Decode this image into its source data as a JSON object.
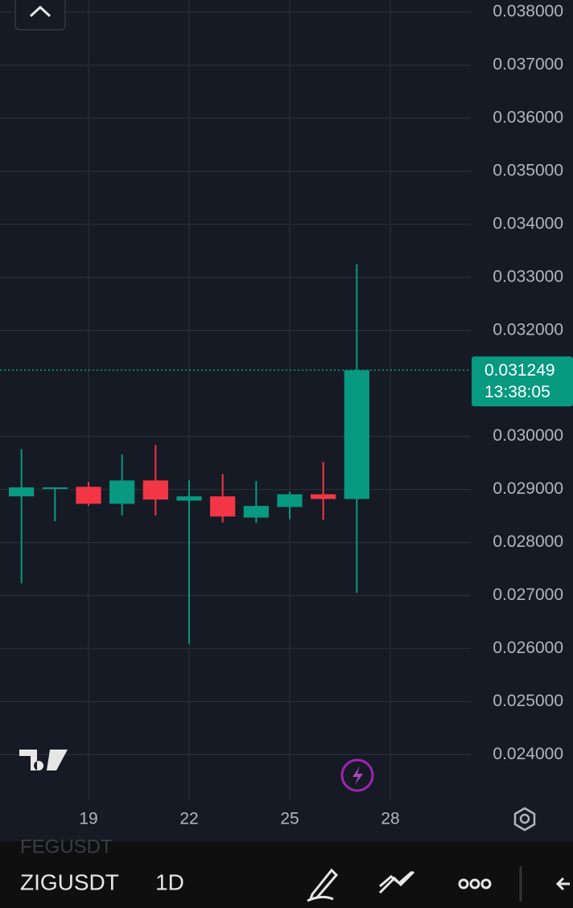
{
  "chart_data": {
    "type": "candlestick",
    "x": [
      17,
      18,
      19,
      20,
      21,
      22,
      23,
      24,
      25,
      26,
      27
    ],
    "open": [
      0.02887,
      0.02901,
      0.02905,
      0.02873,
      0.02917,
      0.02879,
      0.02887,
      0.02847,
      0.02867,
      0.02891,
      0.02882
    ],
    "high": [
      0.02976,
      0.02904,
      0.02914,
      0.02966,
      0.02984,
      0.02917,
      0.02929,
      0.02916,
      0.02896,
      0.02952,
      0.03325
    ],
    "low": [
      0.02723,
      0.0284,
      0.02869,
      0.02851,
      0.02851,
      0.02609,
      0.02838,
      0.02837,
      0.02844,
      0.02843,
      0.02705
    ],
    "close": [
      0.02904,
      0.02904,
      0.02873,
      0.02917,
      0.02881,
      0.02887,
      0.02849,
      0.02869,
      0.02891,
      0.02882,
      0.031249
    ],
    "up_color": "#089981",
    "down_color": "#f23645",
    "xlim": [
      16.36,
      30.4
    ],
    "ylim": [
      0.02314,
      0.03823
    ],
    "xticks": [
      19,
      22,
      25,
      28
    ],
    "yticks": [
      {
        "value": 0.038,
        "label": "0.038000"
      },
      {
        "value": 0.037,
        "label": "0.037000"
      },
      {
        "value": 0.036,
        "label": "0.036000"
      },
      {
        "value": 0.035,
        "label": "0.035000"
      },
      {
        "value": 0.034,
        "label": "0.034000"
      },
      {
        "value": 0.033,
        "label": "0.033000"
      },
      {
        "value": 0.032,
        "label": "0.032000"
      },
      {
        "value": 0.03,
        "label": "0.030000"
      },
      {
        "value": 0.029,
        "label": "0.029000"
      },
      {
        "value": 0.028,
        "label": "0.028000"
      },
      {
        "value": 0.027,
        "label": "0.027000"
      },
      {
        "value": 0.026,
        "label": "0.026000"
      },
      {
        "value": 0.025,
        "label": "0.025000"
      },
      {
        "value": 0.024,
        "label": "0.024000"
      }
    ],
    "grid": true,
    "last_price": 0.031249,
    "countdown": "13:38:05"
  },
  "toolbar": {
    "symbol": "ZIGUSDT",
    "interval": "1D",
    "previous_symbol": "FEGUSDT"
  }
}
